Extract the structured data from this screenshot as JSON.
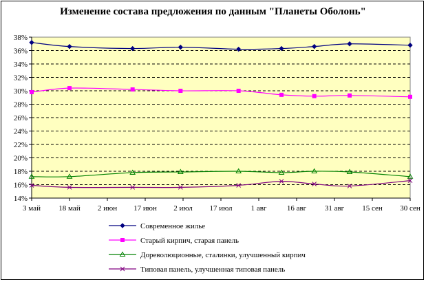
{
  "chart_data": {
    "type": "line",
    "title": "Изменение состава предложения по данным \"Планеты Оболонь\"",
    "xlabel": "",
    "ylabel": "",
    "ylim": [
      14,
      38
    ],
    "y_ticks": [
      "14%",
      "16%",
      "18%",
      "20%",
      "22%",
      "24%",
      "26%",
      "28%",
      "30%",
      "32%",
      "34%",
      "36%",
      "38%"
    ],
    "x_ticks": [
      "3 май",
      "18 май",
      "2 июн",
      "17 июн",
      "2 июл",
      "17 июл",
      "1 авг",
      "16 авг",
      "31 авг",
      "15 сен",
      "30 сен"
    ],
    "x_range": [
      "2010-05-03",
      "2010-09-30"
    ],
    "grid": "horizontal dashed",
    "plot_background": "#ffffc0",
    "legend_position": "bottom",
    "series": [
      {
        "name": "Современное жилье",
        "color": "#000080",
        "marker": "diamond",
        "x": [
          "2010-05-03",
          "2010-05-18",
          "2010-06-12",
          "2010-07-01",
          "2010-07-24",
          "2010-08-10",
          "2010-08-23",
          "2010-09-06",
          "2010-09-30"
        ],
        "values": [
          37.2,
          36.6,
          36.3,
          36.5,
          36.2,
          36.3,
          36.6,
          37.0,
          36.8
        ]
      },
      {
        "name": "Старый кирпич, старая панель",
        "color": "#ff00ff",
        "marker": "square",
        "x": [
          "2010-05-03",
          "2010-05-18",
          "2010-06-12",
          "2010-07-01",
          "2010-07-24",
          "2010-08-10",
          "2010-08-23",
          "2010-09-06",
          "2010-09-30"
        ],
        "values": [
          29.8,
          30.4,
          30.2,
          30.0,
          30.0,
          29.4,
          29.2,
          29.3,
          29.1
        ]
      },
      {
        "name": "Дореволюционные, сталинки, улучшенный кирпич",
        "color": "#008000",
        "marker": "triangle",
        "x": [
          "2010-05-03",
          "2010-05-18",
          "2010-06-12",
          "2010-07-01",
          "2010-07-24",
          "2010-08-10",
          "2010-08-23",
          "2010-09-06",
          "2010-09-30"
        ],
        "values": [
          17.2,
          17.2,
          17.8,
          17.9,
          18.0,
          17.8,
          18.0,
          17.9,
          17.2
        ]
      },
      {
        "name": "Типовая панель, улучшенная типовая панель",
        "color": "#800080",
        "marker": "x",
        "x": [
          "2010-05-03",
          "2010-05-18",
          "2010-06-12",
          "2010-07-01",
          "2010-07-24",
          "2010-08-10",
          "2010-08-23",
          "2010-09-06",
          "2010-09-30"
        ],
        "values": [
          15.9,
          15.6,
          15.6,
          15.6,
          15.9,
          16.5,
          16.1,
          15.8,
          16.6
        ]
      }
    ]
  }
}
